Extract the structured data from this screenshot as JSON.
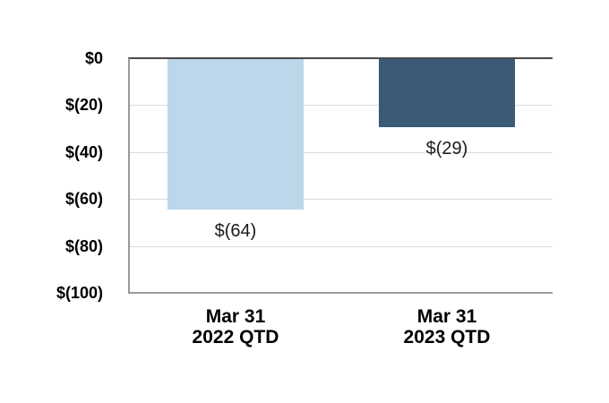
{
  "chart_data": {
    "type": "bar",
    "title": "",
    "orientation": "vertical-negative",
    "categories": [
      "Mar 31\n2022 QTD",
      "Mar 31\n2023 QTD"
    ],
    "values": [
      -64,
      -29
    ],
    "value_labels": [
      "$(64)",
      "$(29)"
    ],
    "bar_colors": [
      "#BCD6EA",
      "#3B5A77"
    ],
    "y_ticks": [
      0,
      -20,
      -40,
      -60,
      -80,
      -100
    ],
    "y_tick_labels": [
      "$0",
      "$(20)",
      "$(40)",
      "$(60)",
      "$(80)",
      "$(100)"
    ],
    "ylim": [
      -100,
      0
    ],
    "xlabel": "",
    "ylabel": "",
    "grid": true,
    "legend": "none"
  },
  "colors": {
    "background": "#FFFFFF",
    "gridline": "#DCDCDC",
    "zero_line": "#4A4A4A",
    "axis_border": "#9A9A9A",
    "text": "#000000"
  }
}
